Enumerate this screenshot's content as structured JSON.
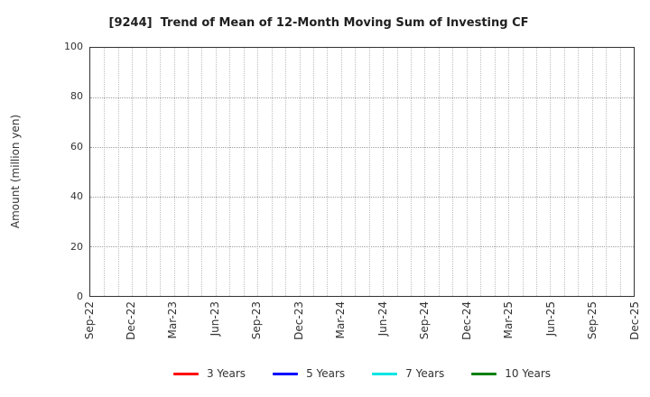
{
  "chart_data": {
    "type": "line",
    "title": "[9244]  Trend of Mean of 12-Month Moving Sum of Investing CF",
    "xlabel": "",
    "ylabel": "Amount (million yen)",
    "ylim": [
      0,
      100
    ],
    "yticks": [
      0,
      20,
      40,
      60,
      80,
      100
    ],
    "xtick_labels": [
      "Sep-22",
      "Dec-22",
      "Mar-23",
      "Jun-23",
      "Sep-23",
      "Dec-23",
      "Mar-24",
      "Jun-24",
      "Sep-24",
      "Dec-24",
      "Mar-25",
      "Jun-25",
      "Sep-25",
      "Dec-25"
    ],
    "xtick_step_months": 3,
    "months_span": 39,
    "grid": true,
    "grid_style": "dotted",
    "legend_position": "bottom-center",
    "series": [
      {
        "name": "3 Years",
        "color": "#ff0000",
        "values": []
      },
      {
        "name": "5 Years",
        "color": "#0000ff",
        "values": []
      },
      {
        "name": "7 Years",
        "color": "#00e5e5",
        "values": []
      },
      {
        "name": "10 Years",
        "color": "#008000",
        "values": []
      }
    ],
    "plot_is_empty": true,
    "text_color": "#333333",
    "spine_color": "#333333"
  }
}
